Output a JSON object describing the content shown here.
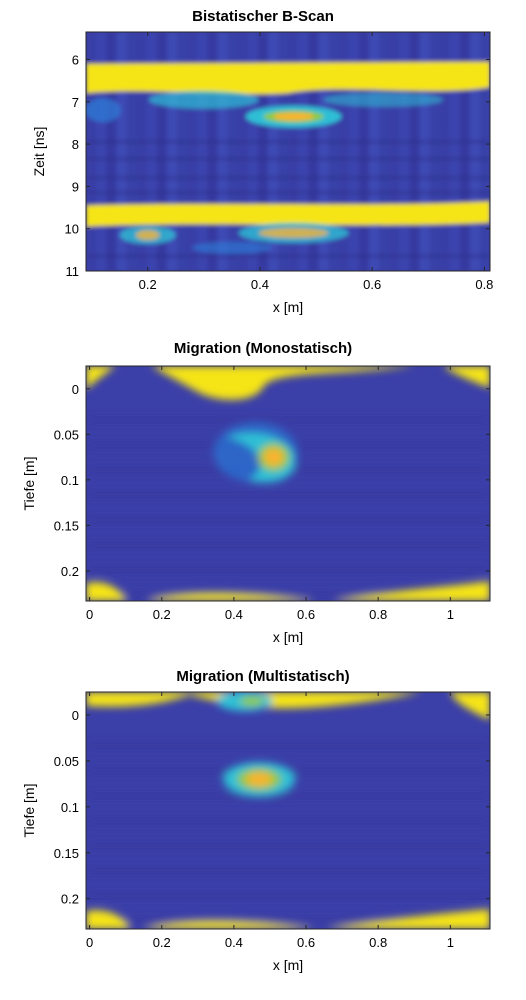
{
  "chart_data": [
    {
      "type": "heatmap",
      "title": "Bistatischer B-Scan",
      "xlabel": "x [m]",
      "ylabel": "Zeit [ns]",
      "xlim": [
        0.09,
        0.81
      ],
      "ylim": [
        5.35,
        11.0
      ],
      "y_reversed": true,
      "xticks": [
        0.2,
        0.4,
        0.6,
        0.8
      ],
      "yticks": [
        6,
        7,
        8,
        9,
        10,
        11
      ],
      "colormap": "parula",
      "background_color": "#3b3fa8",
      "features": [
        {
          "kind": "band",
          "y_top": 6.1,
          "y_bottom": 6.75,
          "intensity": 1.0
        },
        {
          "kind": "band",
          "y_top": 9.4,
          "y_bottom": 9.95,
          "intensity": 1.0
        },
        {
          "kind": "blob",
          "x": 0.46,
          "y": 7.35,
          "intensity": 0.85
        },
        {
          "kind": "blob",
          "x": 0.46,
          "y": 10.1,
          "intensity": 0.6
        },
        {
          "kind": "blob",
          "x": 0.2,
          "y": 10.15,
          "intensity": 0.55
        }
      ]
    },
    {
      "type": "heatmap",
      "title": "Migration (Monostatisch)",
      "xlabel": "x [m]",
      "ylabel": "Tiefe [m]",
      "xlim": [
        -0.01,
        1.11
      ],
      "ylim": [
        -0.025,
        0.233
      ],
      "y_reversed": true,
      "xticks": [
        0,
        0.2,
        0.4,
        0.6,
        0.8,
        1
      ],
      "yticks": [
        0,
        0.05,
        0.1,
        0.15,
        0.2
      ],
      "colormap": "parula",
      "background_color": "#3b3fa8",
      "features": [
        {
          "kind": "blob",
          "x": 0.51,
          "y": 0.075,
          "intensity": 0.9
        },
        {
          "kind": "blob",
          "x": 0.42,
          "y": 0.052,
          "intensity": 0.55
        },
        {
          "kind": "blob",
          "x": 0.44,
          "y": 0.095,
          "intensity": 0.5
        }
      ]
    },
    {
      "type": "heatmap",
      "title": "Migration (Multistatisch)",
      "xlabel": "x [m]",
      "ylabel": "Tiefe [m]",
      "xlim": [
        -0.01,
        1.11
      ],
      "ylim": [
        -0.025,
        0.233
      ],
      "y_reversed": true,
      "xticks": [
        0,
        0.2,
        0.4,
        0.6,
        0.8,
        1
      ],
      "yticks": [
        0,
        0.05,
        0.1,
        0.15,
        0.2
      ],
      "colormap": "parula",
      "background_color": "#3b3fa8",
      "features": [
        {
          "kind": "blob",
          "x": 0.47,
          "y": 0.07,
          "intensity": 0.9
        },
        {
          "kind": "blob",
          "x": 0.43,
          "y": -0.015,
          "intensity": 0.65
        }
      ]
    }
  ]
}
